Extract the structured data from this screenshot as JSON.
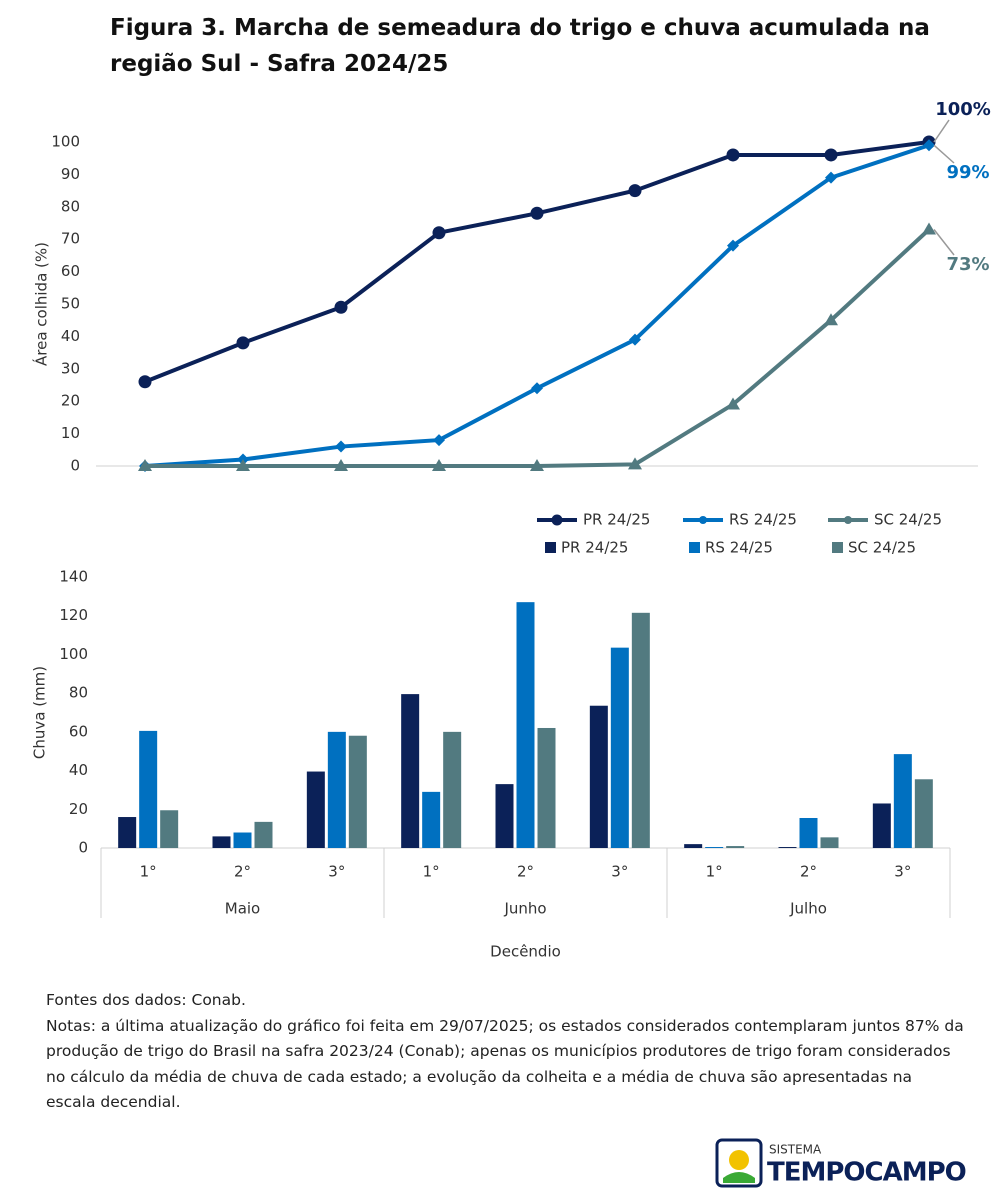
{
  "title": "Figura 3. Marcha de semeadura do trigo e chuva acumulada na região Sul - Safra 2024/25",
  "chart_data": [
    {
      "type": "line",
      "y_label": "Área colhida (%)",
      "categories": [
        null,
        null,
        null,
        null,
        null,
        null,
        null,
        null,
        null
      ],
      "ylim": [
        0,
        100
      ],
      "yticks": [
        0,
        10,
        20,
        30,
        40,
        50,
        60,
        70,
        80,
        90,
        100
      ],
      "series": [
        {
          "name": "PR 24/25",
          "color": "#0b2158",
          "marker": "circle",
          "values": [
            26,
            38,
            49,
            72,
            78,
            85,
            96,
            96,
            100
          ],
          "value_labels": [
            null,
            null,
            null,
            null,
            null,
            null,
            null,
            null,
            "100%"
          ]
        },
        {
          "name": "RS 24/25",
          "color": "#0070c0",
          "marker": "diamond",
          "values": [
            0,
            2,
            6,
            8,
            24,
            39,
            68,
            89,
            99
          ],
          "value_labels": [
            null,
            null,
            null,
            null,
            null,
            null,
            null,
            null,
            "99%"
          ]
        },
        {
          "name": "SC 24/25",
          "color": "#527a80",
          "marker": "triangle",
          "values": [
            0,
            0,
            0,
            0,
            0,
            0.5,
            19,
            45,
            73
          ],
          "value_labels": [
            null,
            null,
            null,
            null,
            null,
            null,
            null,
            null,
            "73%"
          ]
        }
      ]
    },
    {
      "type": "bar",
      "y_label": "Chuva (mm)",
      "x_label": "Decêndio",
      "categories": [
        "1°",
        "2°",
        "3°",
        "1°",
        "2°",
        "3°",
        "1°",
        "2°",
        "3°"
      ],
      "groups": [
        "Maio",
        "Junho",
        "Julho"
      ],
      "ylim": [
        0,
        140
      ],
      "yticks": [
        0,
        20,
        40,
        60,
        80,
        100,
        120,
        140
      ],
      "series": [
        {
          "name": "PR 24/25",
          "color": "#0b2158",
          "values": [
            16,
            6,
            39.5,
            79.5,
            33,
            73.5,
            2,
            0.5,
            23
          ]
        },
        {
          "name": "RS 24/25",
          "color": "#0070c0",
          "values": [
            60.5,
            8,
            60,
            29,
            127,
            103.5,
            0.5,
            15.5,
            48.5
          ]
        },
        {
          "name": "SC 24/25",
          "color": "#527a80",
          "values": [
            19.5,
            13.5,
            58,
            60,
            62,
            121.5,
            1,
            5.5,
            35.5
          ]
        }
      ]
    }
  ],
  "sources": "Fontes dos dados: Conab.",
  "notes": "Notas: a última atualização do gráfico foi feita em 29/07/2025; os estados considerados contemplaram juntos 87% da produção de trigo do Brasil na safra 2023/24 (Conab); apenas os municípios produtores de trigo foram considerados no cálculo da média de chuva de cada estado; a evolução da colheita e a média de chuva são apresentadas na escala decendial.",
  "logo": {
    "top": "SISTEMA",
    "name": "TEMPOCAMPO"
  }
}
